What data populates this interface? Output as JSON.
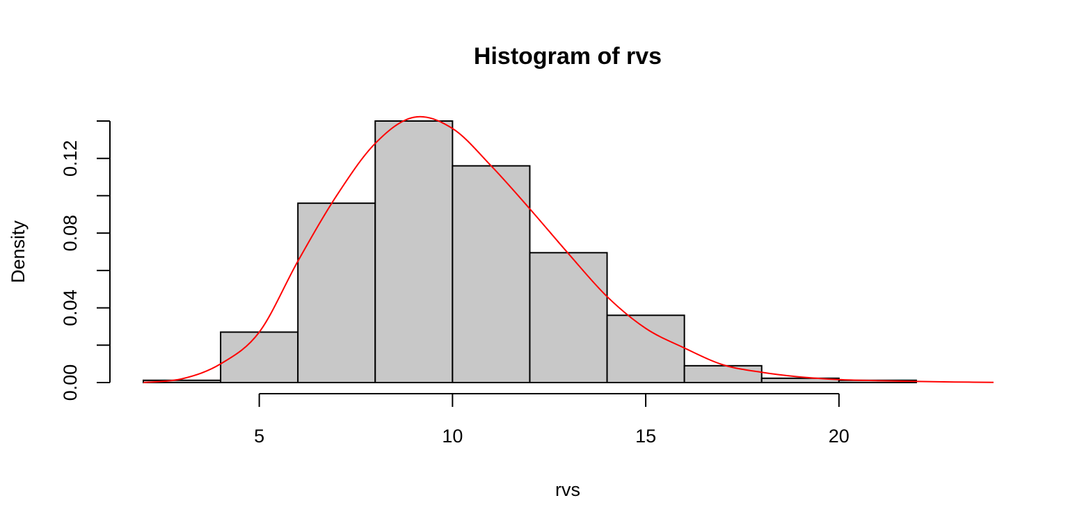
{
  "chart_data": {
    "type": "bar",
    "title": "Histogram of rvs",
    "xlabel": "rvs",
    "ylabel": "Density",
    "xlim": [
      2,
      24
    ],
    "ylim": [
      0,
      0.14
    ],
    "x_ticks": [
      5,
      10,
      15,
      20
    ],
    "x_tick_labels": [
      "5",
      "10",
      "15",
      "20"
    ],
    "y_ticks": [
      0,
      0.02,
      0.04,
      0.06,
      0.08,
      0.1,
      0.12,
      0.14
    ],
    "y_tick_labels": [
      "0.00",
      "",
      "0.04",
      "",
      "0.08",
      "",
      "0.12",
      ""
    ],
    "bins": [
      {
        "x0": 2,
        "x1": 4,
        "density": 0.0012
      },
      {
        "x0": 4,
        "x1": 6,
        "density": 0.027
      },
      {
        "x0": 6,
        "x1": 8,
        "density": 0.096
      },
      {
        "x0": 8,
        "x1": 10,
        "density": 0.14
      },
      {
        "x0": 10,
        "x1": 12,
        "density": 0.116
      },
      {
        "x0": 12,
        "x1": 14,
        "density": 0.0695
      },
      {
        "x0": 14,
        "x1": 16,
        "density": 0.036
      },
      {
        "x0": 16,
        "x1": 18,
        "density": 0.009
      },
      {
        "x0": 18,
        "x1": 20,
        "density": 0.0023
      },
      {
        "x0": 20,
        "x1": 22,
        "density": 0.0012
      },
      {
        "x0": 22,
        "x1": 24,
        "density": 0.0
      }
    ],
    "series": [
      {
        "type": "line",
        "color": "#ff0000",
        "x": [
          2,
          3,
          4,
          5,
          6,
          7,
          8,
          9,
          10,
          11,
          12,
          13,
          14,
          15,
          16,
          17,
          18,
          19,
          20,
          21,
          22,
          23,
          24
        ],
        "y": [
          0.0,
          0.002,
          0.01,
          0.027,
          0.065,
          0.1,
          0.128,
          0.142,
          0.136,
          0.116,
          0.093,
          0.069,
          0.046,
          0.029,
          0.0185,
          0.0095,
          0.0055,
          0.003,
          0.0016,
          0.001,
          0.0006,
          0.0003,
          0.0001
        ]
      }
    ],
    "colors": {
      "bar_fill": "#c8c8c8",
      "bar_stroke": "#000000",
      "curve": "#ff0000"
    },
    "grid": false
  }
}
